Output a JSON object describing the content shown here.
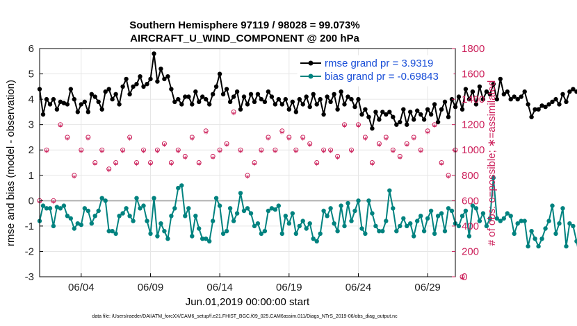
{
  "title_line1": "Southern Hemisphere 97119 / 98028 = 99.073%",
  "title_line2": "AIRCRAFT_U_WIND_COMPONENT @ 200 hPa",
  "xlabel": "Jun.01,2019 00:00:00 start",
  "footnote": "data file: /Users/raeder/DAI/ATM_forcXX/CAM6_setup/f.e21.FHIST_BGC.f09_025.CAM6assim.011/Diags_NTrS_2019-06/obs_diag_output.nc",
  "colors": {
    "rmse": "#000000",
    "bias": "#00827f",
    "obs": "#cc1f5a",
    "zero_line": "#b0b0b0",
    "legend_text": "#1a4fd8"
  },
  "chart_data": {
    "type": "line",
    "title": "Southern Hemisphere 97119 / 98028 = 99.073% — AIRCRAFT_U_WIND_COMPONENT @ 200 hPa",
    "xlabel": "Jun.01,2019 00:00:00 start",
    "ylabel": "rmse and bias (model - observation)",
    "ylabel_right": "# of obs: o=possible; ∗=assimilated",
    "xlim": [
      1,
      31
    ],
    "ylim": [
      -3,
      6
    ],
    "ylim_right": [
      0,
      1800
    ],
    "x_ticks": [
      4,
      9,
      14,
      19,
      24,
      29
    ],
    "x_tick_labels": [
      "06/04",
      "06/09",
      "06/14",
      "06/19",
      "06/24",
      "06/29"
    ],
    "y_ticks": [
      -3,
      -2,
      -1,
      0,
      1,
      2,
      3,
      4,
      5,
      6
    ],
    "y_ticks_right": [
      0,
      200,
      400,
      600,
      800,
      1000,
      1200,
      1400,
      1600,
      1800
    ],
    "x_start": 1.0,
    "x_step": 0.25,
    "legend": {
      "position": "top-right",
      "rmse_label": "rmse grand pr = 3.9319",
      "bias_label": "bias grand pr = -0.69843"
    },
    "series": [
      {
        "name": "rmse",
        "axis": "left",
        "values": [
          4.4,
          3.4,
          4.0,
          3.8,
          4.0,
          3.6,
          3.9,
          3.85,
          3.8,
          4.4,
          4.0,
          3.5,
          3.8,
          3.9,
          3.5,
          4.2,
          4.1,
          3.9,
          3.6,
          4.3,
          4.4,
          4.0,
          4.2,
          3.8,
          4.5,
          4.8,
          4.2,
          4.5,
          4.6,
          4.9,
          4.5,
          4.6,
          4.8,
          5.8,
          4.7,
          5.2,
          4.8,
          4.9,
          4.4,
          3.9,
          4.0,
          3.8,
          4.1,
          4.1,
          3.8,
          4.3,
          3.9,
          4.1,
          4.0,
          3.8,
          4.2,
          4.5,
          5.0,
          4.2,
          4.4,
          3.9,
          4.1,
          4.3,
          3.6,
          4.1,
          3.8,
          4.2,
          3.9,
          4.2,
          4.0,
          3.9,
          4.3,
          4.1,
          3.8,
          4.0,
          3.8,
          4.0,
          3.6,
          3.9,
          3.5,
          4.0,
          3.8,
          4.1,
          3.7,
          4.2,
          3.8,
          4.0,
          3.4,
          4.1,
          3.9,
          4.2,
          3.6,
          4.3,
          3.8,
          4.1,
          4.0,
          3.7,
          4.0,
          3.4,
          3.6,
          3.3,
          2.85,
          3.5,
          3.2,
          3.5,
          3.4,
          3.5,
          3.3,
          3.0,
          3.1,
          3.6,
          3.0,
          3.5,
          3.2,
          3.55,
          3.4,
          3.2,
          3.6,
          3.4,
          3.8,
          3.1,
          3.6,
          3.9,
          3.3,
          4.0,
          3.7,
          4.1,
          3.6,
          4.4,
          4.0,
          4.3,
          3.8,
          4.5,
          4.0,
          4.3,
          4.2,
          4.6,
          4.0,
          4.8,
          4.2,
          4.3,
          4.0,
          4.1,
          4.0,
          4.1,
          4.3,
          3.8,
          3.3,
          3.6,
          3.6,
          3.75,
          3.7,
          3.8,
          3.9,
          4.0,
          3.8,
          4.2,
          3.9,
          4.3,
          4.4,
          4.3,
          4.5,
          4.6,
          4.6,
          4.6,
          4.5,
          4.3,
          4.0,
          4.0,
          3.6,
          3.2
        ]
      },
      {
        "name": "bias",
        "axis": "left",
        "values": [
          -0.8,
          -0.2,
          -0.3,
          -0.3,
          -1.0,
          -0.25,
          -0.3,
          -0.2,
          -0.6,
          -0.7,
          -1.1,
          -0.9,
          -0.95,
          -0.3,
          -0.4,
          -0.9,
          -0.6,
          -0.4,
          0.1,
          0.0,
          -1.2,
          -1.2,
          -1.3,
          -0.6,
          -0.5,
          -0.3,
          -0.6,
          -0.8,
          0.1,
          -0.3,
          -0.2,
          -0.8,
          -1.3,
          0.1,
          -1.4,
          -0.9,
          -1.2,
          -1.5,
          -0.6,
          -0.3,
          0.5,
          0.6,
          -0.6,
          -0.3,
          -1.4,
          -0.6,
          -1.1,
          -1.5,
          -1.5,
          -1.6,
          -0.8,
          0.1,
          -0.2,
          -1.3,
          -1.2,
          -0.3,
          -0.8,
          -0.5,
          0.3,
          -0.4,
          -0.3,
          -0.5,
          -1.0,
          -0.9,
          -1.3,
          -1.2,
          -0.4,
          -0.3,
          -0.35,
          -0.2,
          -1.3,
          -0.6,
          -0.9,
          -0.5,
          -1.3,
          -1.0,
          -0.8,
          -1.1,
          -0.9,
          -1.5,
          -1.6,
          -1.3,
          -0.4,
          -0.6,
          -0.3,
          -0.9,
          -1.2,
          -0.2,
          -1.0,
          -0.1,
          -0.8,
          -0.4,
          0.0,
          -1.1,
          -1.3,
          0.0,
          -0.5,
          -1.0,
          -1.2,
          -1.2,
          -0.8,
          0.4,
          -0.3,
          -1.2,
          -1.0,
          -0.7,
          -1.0,
          -0.9,
          -1.4,
          -0.8,
          -0.6,
          -1.2,
          -0.7,
          -0.4,
          -1.3,
          -0.6,
          -0.5,
          -1.2,
          -0.3,
          -0.4,
          -0.9,
          -1.0,
          -0.6,
          -0.4,
          -1.4,
          -0.2,
          -0.3,
          -0.8,
          -0.5,
          -1.0,
          -0.7,
          0.9,
          -0.7,
          -0.8,
          -0.7,
          -0.5,
          -0.6,
          -1.3,
          -0.9,
          -0.8,
          -0.8,
          -1.8,
          -1.2,
          -1.5,
          -1.8,
          -1.5,
          -1.1,
          -0.8,
          -0.2,
          -1.3,
          -0.9,
          -0.3,
          -1.8,
          -0.9,
          -1.0,
          -1.6,
          -2.3,
          -0.7,
          -0.9,
          -0.6,
          -1.4,
          -1.2,
          -0.9,
          -0.7,
          -1.0,
          -1.3
        ]
      },
      {
        "name": "obs possible / assimilated",
        "axis": "right",
        "x_start": 1.0,
        "x_step": 0.5,
        "values": [
          600,
          1000,
          600,
          1200,
          1100,
          800,
          1000,
          1100,
          900,
          1000,
          850,
          900,
          1000,
          1100,
          900,
          1000,
          900,
          1000,
          1050,
          900,
          1000,
          950,
          1100,
          900,
          1150,
          950,
          1000,
          1050,
          1300,
          1000,
          800,
          900,
          1000,
          1100,
          1000,
          1150,
          1100,
          1000,
          1100,
          1050,
          900,
          1000,
          1000,
          950,
          1200,
          1000,
          1200,
          1100,
          900,
          1050,
          1100,
          1000,
          950,
          1050,
          1100,
          1000,
          1150,
          1200,
          900,
          800,
          1000,
          0
        ]
      }
    ]
  }
}
